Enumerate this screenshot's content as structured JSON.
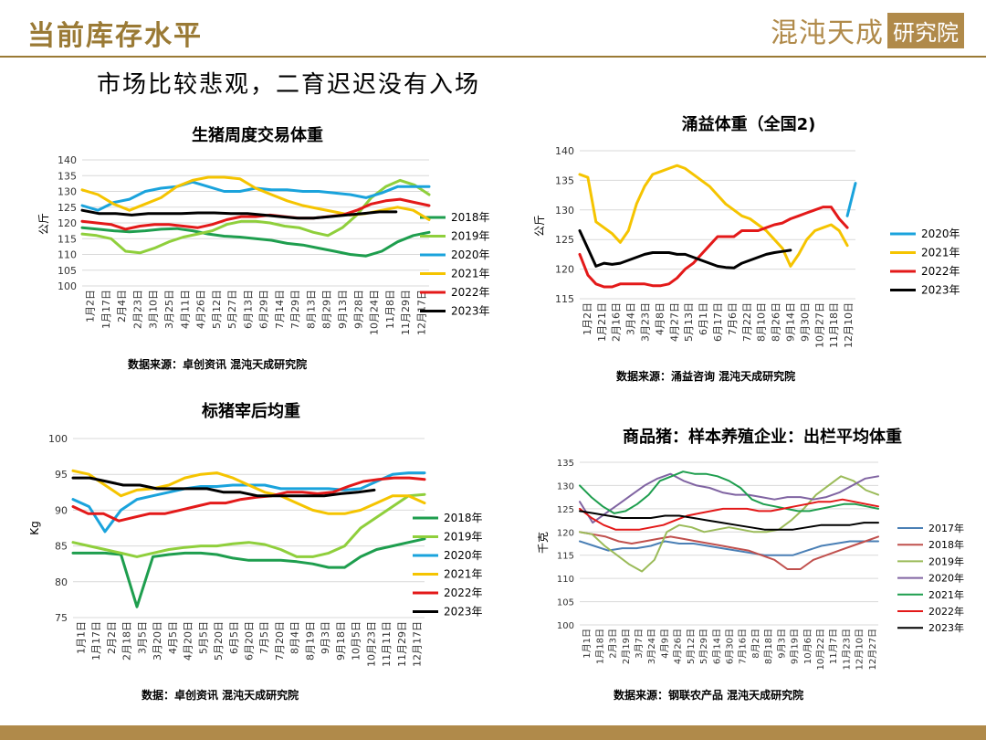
{
  "header": {
    "title": "当前库存水平",
    "logo_text": "混沌天成",
    "logo_box": "研究院"
  },
  "subtitle": "市场比较悲观，二育迟迟没有入场",
  "chart_data": [
    {
      "type": "line",
      "title": "生猪周度交易体重",
      "ylabel": "公斤",
      "ylim": [
        100,
        140
      ],
      "yticks": [
        100,
        105,
        110,
        115,
        120,
        125,
        130,
        135,
        140
      ],
      "x_ticklabels": [
        "1月2日",
        "1月17日",
        "2月4日",
        "2月23日",
        "3月10日",
        "3月25日",
        "4月11日",
        "4月26日",
        "5月12日",
        "5月27日",
        "6月13日",
        "6月29日",
        "7月14日",
        "7月29日",
        "8月13日",
        "8月29日",
        "9月13日",
        "9月28日",
        "10月24日",
        "11月8日",
        "11月29日",
        "12月17日"
      ],
      "source": "数据来源：卓创资讯 混沌天成研究院",
      "colors": {
        "2018年": "#1e9e4e",
        "2019年": "#8fcf3c",
        "2020年": "#1aa3dc",
        "2021年": "#f5c400",
        "2022年": "#e31919",
        "2023年": "#000000"
      },
      "series": [
        {
          "name": "2018年",
          "values": [
            118.5,
            118,
            117.5,
            117.2,
            117.5,
            118,
            118.2,
            117.5,
            116.5,
            115.8,
            115.5,
            115,
            114.5,
            113.5,
            113,
            112,
            111,
            110,
            109.5,
            111,
            114,
            116,
            117
          ]
        },
        {
          "name": "2019年",
          "values": [
            116.5,
            116,
            115,
            111,
            110.5,
            112,
            114,
            115.5,
            116.5,
            117.5,
            119.5,
            120.5,
            120.5,
            120,
            119,
            118.5,
            117,
            116,
            118.5,
            122.5,
            128,
            131.5,
            133.5,
            132,
            129
          ]
        },
        {
          "name": "2020年",
          "values": [
            125.5,
            124,
            126.5,
            127.5,
            130,
            131,
            131.5,
            133,
            131.5,
            130,
            130,
            131,
            130.5,
            130.5,
            130,
            130,
            129.5,
            129,
            128,
            129.5,
            131.5,
            131.5,
            131.5
          ]
        },
        {
          "name": "2021年",
          "values": [
            130.5,
            129,
            126,
            124,
            126,
            128,
            131.5,
            133.5,
            134.5,
            134.5,
            134,
            131,
            129,
            127,
            125.5,
            124.5,
            123.5,
            122.5,
            123,
            124,
            125,
            124,
            121
          ]
        },
        {
          "name": "2022年",
          "values": [
            120.5,
            120,
            119.5,
            118,
            119,
            119.5,
            119.5,
            119,
            118.5,
            119.5,
            121,
            122,
            122,
            122.5,
            122,
            121.5,
            121.5,
            122,
            122.5,
            124,
            126,
            127,
            127.5,
            126.5,
            125.5
          ]
        },
        {
          "name": "2023年",
          "values": [
            124,
            123,
            123,
            122.5,
            123,
            123,
            123,
            123.2,
            123.2,
            123,
            123,
            122.5,
            122,
            121.5,
            121.5,
            122,
            122.5,
            123,
            123.5,
            123.5
          ]
        }
      ]
    },
    {
      "type": "line",
      "title": "涌益体重（全国2)",
      "ylabel": "公斤",
      "ylim": [
        115,
        140
      ],
      "yticks": [
        115,
        120,
        125,
        130,
        135,
        140
      ],
      "x_ticklabels": [
        "1月2日",
        "1月21日",
        "2月16日",
        "3月4日",
        "3月23日",
        "4月8日",
        "4月27日",
        "5月13日",
        "6月1日",
        "6月17日",
        "7月6日",
        "7月22日",
        "8月10日",
        "8月26日",
        "9月14日",
        "9月30日",
        "10月27日",
        "11月18日",
        "12月10日"
      ],
      "source": "数据来源：涌益咨询 混沌天成研究院",
      "colors": {
        "2020年": "#1aa3dc",
        "2021年": "#f5c400",
        "2022年": "#e31919",
        "2023年": "#000000"
      },
      "series": [
        {
          "name": "2020年",
          "values": [
            null,
            null,
            null,
            null,
            null,
            null,
            null,
            null,
            null,
            null,
            null,
            null,
            null,
            null,
            null,
            null,
            null,
            null,
            null,
            null,
            null,
            null,
            null,
            null,
            null,
            null,
            null,
            null,
            null,
            null,
            null,
            null,
            null,
            129,
            134.5
          ]
        },
        {
          "name": "2021年",
          "values": [
            136,
            135.5,
            128,
            127,
            126,
            124.5,
            126.5,
            131,
            134,
            136,
            136.5,
            137,
            137.5,
            137,
            136,
            135,
            134,
            132.5,
            131,
            130,
            129,
            128.5,
            127.5,
            126.5,
            125,
            123.5,
            120.5,
            122.5,
            125,
            126.5,
            127,
            127.5,
            126.5,
            124,
            null
          ]
        },
        {
          "name": "2022年",
          "values": [
            122.5,
            119,
            117.5,
            117,
            117,
            117.5,
            117.5,
            117.5,
            117.5,
            117.2,
            117.2,
            117.5,
            118.5,
            120,
            121,
            122.5,
            124,
            125.5,
            125.5,
            125.5,
            126.5,
            126.5,
            126.5,
            127,
            127.5,
            127.8,
            128.5,
            129,
            129.5,
            130,
            130.5,
            130.5,
            128.5,
            127,
            null
          ]
        },
        {
          "name": "2023年",
          "values": [
            126.5,
            123.5,
            120.5,
            121,
            120.8,
            121,
            121.5,
            122,
            122.5,
            122.8,
            122.8,
            122.8,
            122.5,
            122.5,
            122,
            121.5,
            121,
            120.5,
            120.3,
            120.2,
            121,
            121.5,
            122,
            122.5,
            122.8,
            123,
            123.2
          ]
        }
      ]
    },
    {
      "type": "line",
      "title": "标猪宰后均重",
      "ylabel": "Kg",
      "ylim": [
        75,
        100
      ],
      "yticks": [
        75,
        80,
        85,
        90,
        95,
        100
      ],
      "x_ticklabels": [
        "1月1日",
        "1月17日",
        "2月2日",
        "2月18日",
        "3月5日",
        "3月20日",
        "4月5日",
        "4月20日",
        "5月5日",
        "5月20日",
        "6月5日",
        "6月20日",
        "7月5日",
        "7月20日",
        "8月4日",
        "8月19日",
        "9月3日",
        "9月18日",
        "10月5日",
        "10月23日",
        "11月11日",
        "11月29日",
        "12月17日"
      ],
      "source": "数据：卓创资讯 混沌天成研究院",
      "colors": {
        "2018年": "#1e9e4e",
        "2019年": "#8fcf3c",
        "2020年": "#1aa3dc",
        "2021年": "#f5c400",
        "2022年": "#e31919",
        "2023年": "#000000"
      },
      "series": [
        {
          "name": "2018年",
          "values": [
            84,
            84,
            84,
            83.8,
            76.5,
            83.5,
            83.8,
            84,
            84,
            83.8,
            83.3,
            83,
            83,
            83,
            82.8,
            82.5,
            82,
            82,
            83.5,
            84.5,
            85,
            85.5,
            86
          ]
        },
        {
          "name": "2019年",
          "values": [
            85.5,
            85,
            84.5,
            84,
            83.5,
            84,
            84.5,
            84.8,
            85,
            85,
            85.3,
            85.5,
            85.2,
            84.5,
            83.5,
            83.5,
            84,
            85,
            87.5,
            89,
            90.5,
            92,
            92.2
          ]
        },
        {
          "name": "2020年",
          "values": [
            91.5,
            90.5,
            87,
            90,
            91.5,
            92,
            92.5,
            93,
            93.3,
            93.3,
            93.5,
            93.5,
            93.5,
            93,
            93,
            93,
            93,
            92.8,
            93,
            94,
            95,
            95.2,
            95.2
          ]
        },
        {
          "name": "2021年",
          "values": [
            95.5,
            95,
            93.5,
            92,
            92.8,
            93,
            93.5,
            94.5,
            95,
            95.2,
            94.5,
            93.5,
            92.5,
            92,
            91,
            90,
            89.5,
            89.5,
            90,
            91,
            92,
            92,
            91
          ]
        },
        {
          "name": "2022年",
          "values": [
            90.5,
            89.5,
            89.5,
            88.5,
            89,
            89.5,
            89.5,
            90,
            90.5,
            91,
            91,
            91.5,
            91.8,
            92,
            92.5,
            92.5,
            92.3,
            92.5,
            93.3,
            94,
            94.3,
            94.5,
            94.5,
            94.3
          ]
        },
        {
          "name": "2023年",
          "values": [
            94.5,
            94.5,
            94,
            93.5,
            93.5,
            93,
            93,
            93,
            93,
            92.5,
            92.5,
            92,
            92,
            92,
            92,
            92,
            92.3,
            92.5,
            92.8
          ]
        }
      ]
    },
    {
      "type": "line",
      "title": "商品猪：样本养殖企业：出栏平均体重",
      "ylabel": "千克",
      "ylim": [
        100,
        135
      ],
      "yticks": [
        100,
        105,
        110,
        115,
        120,
        125,
        130,
        135
      ],
      "x_ticklabels": [
        "1月1日",
        "1月18日",
        "2月3日",
        "2月19日",
        "3月7日",
        "3月24日",
        "4月9日",
        "4月26日",
        "5月12日",
        "5月29日",
        "6月14日",
        "6月30日",
        "7月16日",
        "8月2日",
        "8月18日",
        "9月3日",
        "9月19日",
        "10月6日",
        "10月22日",
        "11月7日",
        "11月23日",
        "12月10日",
        "12月27日"
      ],
      "source": "数据来源：钢联农产品 混沌天成研究院",
      "colors": {
        "2017年": "#4a7fb5",
        "2018年": "#c0504d",
        "2019年": "#9bbb59",
        "2020年": "#8064a2",
        "2021年": "#1e9e4e",
        "2022年": "#e31919",
        "2023年": "#000000"
      },
      "series": [
        {
          "name": "2017年",
          "values": [
            118,
            117,
            116,
            116.5,
            116.5,
            117,
            118,
            117.5,
            117.5,
            117,
            116.5,
            116,
            115.5,
            115,
            115,
            115,
            116,
            117,
            117.5,
            118,
            118,
            118
          ]
        },
        {
          "name": "2018年",
          "values": [
            120,
            119.5,
            119,
            118,
            117.5,
            118,
            118.5,
            119,
            118.5,
            118,
            117.5,
            117,
            116.5,
            116,
            115,
            114,
            112,
            112,
            114,
            115,
            116,
            117,
            118,
            119
          ]
        },
        {
          "name": "2019年",
          "values": [
            120,
            119.5,
            117,
            115,
            113,
            111.5,
            114,
            120,
            121.5,
            121,
            120,
            120.5,
            121,
            120.5,
            120,
            120,
            120.5,
            122.5,
            125,
            128,
            130,
            132,
            131,
            129,
            128
          ]
        },
        {
          "name": "2020年",
          "values": [
            126.5,
            122,
            124,
            126,
            128,
            130,
            131.5,
            132.5,
            131,
            130,
            129.5,
            128.5,
            128,
            128,
            127.5,
            127,
            127.5,
            127.5,
            127,
            127.5,
            128.5,
            130,
            131.5,
            132
          ]
        },
        {
          "name": "2021年",
          "values": [
            130,
            127.5,
            125.5,
            124,
            124.5,
            126,
            128,
            131,
            132,
            133,
            132.5,
            132.5,
            132,
            131,
            129.5,
            127,
            126,
            125.5,
            125,
            124.5,
            124.5,
            125,
            125.5,
            126,
            126,
            125.5,
            125
          ]
        },
        {
          "name": "2022年",
          "values": [
            125,
            123,
            121.5,
            120.5,
            120.5,
            120.5,
            121,
            121.5,
            122.5,
            123.5,
            124,
            124.5,
            125,
            125,
            125,
            124.5,
            124.5,
            125,
            125.5,
            126,
            126.5,
            126.5,
            127,
            126.5,
            126,
            125.5
          ]
        },
        {
          "name": "2023年",
          "values": [
            124.5,
            124,
            123.5,
            123,
            123,
            123,
            123.5,
            123.5,
            123,
            122.5,
            122,
            121.5,
            121,
            120.5,
            120.5,
            120.5,
            121,
            121.5,
            121.5,
            121.5,
            122,
            122
          ]
        }
      ]
    }
  ]
}
